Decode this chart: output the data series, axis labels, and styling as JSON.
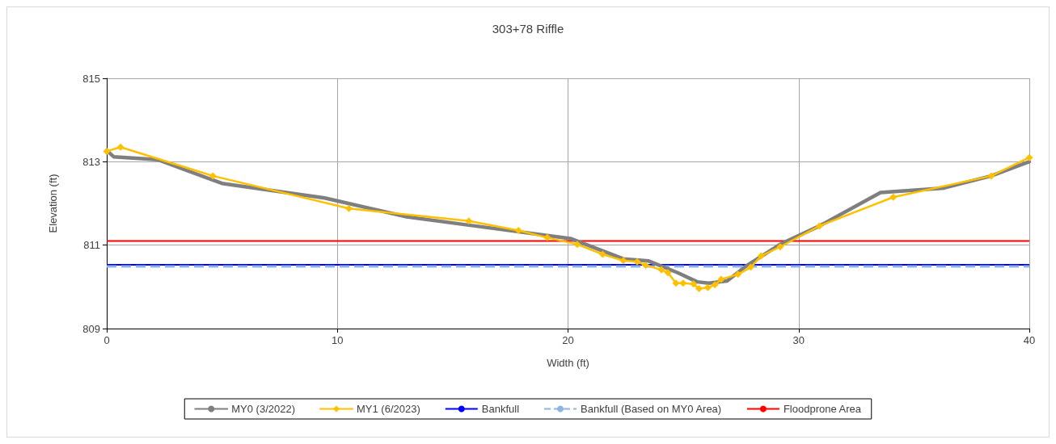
{
  "chart_data": {
    "type": "line",
    "title": "303+78 Riffle",
    "xlabel": "Width (ft)",
    "ylabel": "Elevation (ft)",
    "xlim": [
      0,
      40
    ],
    "xticks": [
      0,
      10,
      20,
      30,
      40
    ],
    "ylim": [
      809,
      815
    ],
    "yticks": [
      809,
      811,
      813,
      815
    ],
    "grid": true,
    "legend": "bottom",
    "series": [
      {
        "name": "MY0 (3/2022)",
        "color": "#7f7f7f",
        "marker": "none",
        "x": [
          0,
          0.3,
          2.2,
          5.0,
          9.45,
          13.0,
          15.7,
          20.1,
          22.4,
          23.5,
          24.75,
          25.6,
          26.1,
          26.9,
          27.7,
          29.2,
          30.9,
          33.55,
          36.3,
          38.35,
          40
        ],
        "values": [
          813.27,
          813.12,
          813.05,
          812.48,
          812.13,
          811.68,
          811.48,
          811.16,
          810.67,
          810.62,
          810.34,
          810.12,
          810.09,
          810.14,
          810.49,
          811.02,
          811.46,
          812.26,
          812.37,
          812.66,
          813.0
        ]
      },
      {
        "name": "MY1 (6/2023)",
        "color": "#ffc000",
        "marker": "diamond",
        "x": [
          0,
          0.6,
          4.6,
          10.5,
          15.7,
          17.85,
          19.1,
          20.4,
          21.5,
          22.4,
          23.0,
          23.36,
          24.05,
          24.33,
          24.68,
          24.99,
          25.44,
          25.68,
          26.06,
          26.37,
          26.64,
          27.37,
          27.92,
          28.37,
          29.2,
          30.9,
          34.1,
          38.35,
          40
        ],
        "values": [
          813.25,
          813.35,
          812.66,
          811.88,
          811.58,
          811.35,
          811.18,
          811.02,
          810.78,
          810.63,
          810.6,
          810.52,
          810.41,
          810.34,
          810.09,
          810.09,
          810.07,
          809.96,
          809.98,
          810.05,
          810.18,
          810.3,
          810.47,
          810.74,
          810.96,
          811.46,
          812.15,
          812.66,
          813.1
        ]
      }
    ],
    "ref_lines": [
      {
        "axis": "y",
        "value": 810.53,
        "label": "Bankfull",
        "color": "#0000ff",
        "line_style": "solid"
      },
      {
        "axis": "y",
        "value": 810.49,
        "label": "Bankfull (Based on MY0 Area)",
        "color": "#8eb4e3",
        "line_style": "dashed"
      },
      {
        "axis": "y",
        "value": 811.1,
        "label": "Floodprone Area",
        "color": "#ff0000",
        "line_style": "solid"
      }
    ]
  }
}
